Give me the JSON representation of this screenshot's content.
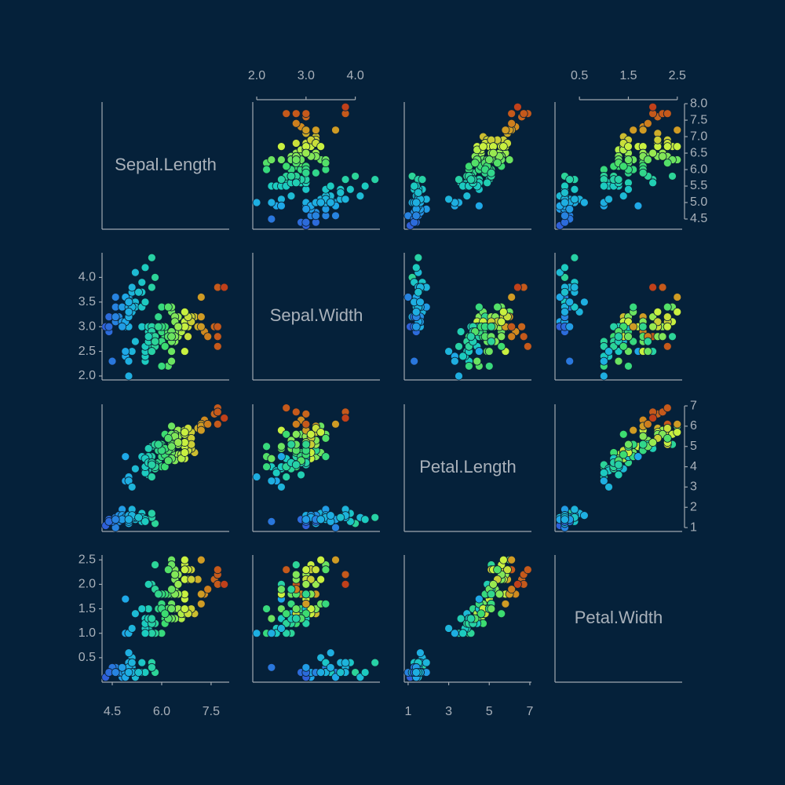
{
  "chart_data": {
    "type": "scatter_matrix",
    "color_by": 0,
    "colormap": [
      "#2f5fd8",
      "#1ea8e8",
      "#1ccbc0",
      "#3cdc70",
      "#c8f040",
      "#d08a1e",
      "#c0401a"
    ],
    "variables": [
      {
        "name": "Sepal.Length",
        "lim": [
          4.19,
          8.05
        ],
        "xticks": [
          4.5,
          {
            "value": 6,
            "label": "6.0"
          },
          7.5
        ],
        "yticks": [
          4.5,
          {
            "value": 5,
            "label": "5.0"
          },
          5.5,
          {
            "value": 6,
            "label": "6.0"
          },
          6.5,
          {
            "value": 7,
            "label": "7.0"
          },
          7.5,
          {
            "value": 8,
            "label": "8.0"
          }
        ],
        "values": [
          5.1,
          4.9,
          4.7,
          4.6,
          5.0,
          5.4,
          4.6,
          5.0,
          4.4,
          4.9,
          5.4,
          4.8,
          4.8,
          4.3,
          5.8,
          5.7,
          5.4,
          5.1,
          5.7,
          5.1,
          5.4,
          5.1,
          4.6,
          5.1,
          4.8,
          5.0,
          5.0,
          5.2,
          5.2,
          4.7,
          4.8,
          5.4,
          5.2,
          5.5,
          4.9,
          5.0,
          5.5,
          4.9,
          4.4,
          5.1,
          5.0,
          4.5,
          4.4,
          5.0,
          5.1,
          4.8,
          5.1,
          4.6,
          5.3,
          5.0,
          7.0,
          6.4,
          6.9,
          5.5,
          6.5,
          5.7,
          6.3,
          4.9,
          6.6,
          5.2,
          5.0,
          5.9,
          6.0,
          6.1,
          5.6,
          6.7,
          5.6,
          5.8,
          6.2,
          5.6,
          5.9,
          6.1,
          6.3,
          6.1,
          6.4,
          6.6,
          6.8,
          6.7,
          6.0,
          5.7,
          5.5,
          5.5,
          5.8,
          6.0,
          5.4,
          6.0,
          6.7,
          6.3,
          5.6,
          5.5,
          5.5,
          6.1,
          5.8,
          5.0,
          5.6,
          5.7,
          5.7,
          6.2,
          5.1,
          5.7,
          6.3,
          5.8,
          7.1,
          6.3,
          6.5,
          7.6,
          4.9,
          7.3,
          6.7,
          7.2,
          6.5,
          6.4,
          6.8,
          5.7,
          5.8,
          6.4,
          6.5,
          7.7,
          7.7,
          6.0,
          6.9,
          5.6,
          7.7,
          6.3,
          6.7,
          7.2,
          6.2,
          6.1,
          6.4,
          7.2,
          7.4,
          7.9,
          6.4,
          6.3,
          6.1,
          7.7,
          6.3,
          6.4,
          6.0,
          6.9,
          6.7,
          6.9,
          5.8,
          6.8,
          6.7,
          6.7,
          6.3,
          6.5,
          6.2,
          5.9
        ]
      },
      {
        "name": "Sepal.Width",
        "lim": [
          1.92,
          4.5
        ],
        "xticks": [
          {
            "value": 2,
            "label": "2.0"
          },
          {
            "value": 3,
            "label": "3.0"
          },
          {
            "value": 4,
            "label": "4.0"
          }
        ],
        "yticks": [
          {
            "value": 2,
            "label": "2.0"
          },
          2.5,
          {
            "value": 3,
            "label": "3.0"
          },
          3.5,
          {
            "value": 4,
            "label": "4.0"
          }
        ],
        "values": [
          3.5,
          3.0,
          3.2,
          3.1,
          3.6,
          3.9,
          3.4,
          3.4,
          2.9,
          3.1,
          3.7,
          3.4,
          3.0,
          3.0,
          4.0,
          4.4,
          3.9,
          3.5,
          3.8,
          3.8,
          3.4,
          3.7,
          3.6,
          3.3,
          3.4,
          3.0,
          3.4,
          3.5,
          3.4,
          3.2,
          3.1,
          3.4,
          4.1,
          4.2,
          3.1,
          3.2,
          3.5,
          3.6,
          3.0,
          3.4,
          3.5,
          2.3,
          3.2,
          3.5,
          3.8,
          3.0,
          3.8,
          3.2,
          3.7,
          3.3,
          3.2,
          3.2,
          3.1,
          2.3,
          2.8,
          2.8,
          3.3,
          2.4,
          2.9,
          2.7,
          2.0,
          3.0,
          2.2,
          2.9,
          2.9,
          3.1,
          3.0,
          2.7,
          2.2,
          2.5,
          3.2,
          2.8,
          2.5,
          2.8,
          2.9,
          3.0,
          2.8,
          3.0,
          2.9,
          2.6,
          2.4,
          2.4,
          2.7,
          2.7,
          3.0,
          3.4,
          3.1,
          2.3,
          3.0,
          2.5,
          2.6,
          3.0,
          2.6,
          2.3,
          2.7,
          3.0,
          2.9,
          2.9,
          2.5,
          2.8,
          3.3,
          2.7,
          3.0,
          2.9,
          3.0,
          3.0,
          2.5,
          2.9,
          2.5,
          3.6,
          3.2,
          2.7,
          3.0,
          2.5,
          2.8,
          3.2,
          3.0,
          3.8,
          2.6,
          2.2,
          3.2,
          2.8,
          2.8,
          2.7,
          3.3,
          3.2,
          2.8,
          3.0,
          2.8,
          3.0,
          2.8,
          3.8,
          2.8,
          2.8,
          2.6,
          3.0,
          3.4,
          3.1,
          3.0,
          3.1,
          3.1,
          3.1,
          2.7,
          3.2,
          3.3,
          3.0,
          2.5,
          3.0,
          3.4,
          3.0
        ]
      },
      {
        "name": "Petal.Length",
        "lim": [
          0.81,
          7.08
        ],
        "xticks": [
          1,
          3,
          5,
          7
        ],
        "yticks": [
          1,
          2,
          3,
          4,
          5,
          6,
          7
        ],
        "values": [
          1.4,
          1.4,
          1.3,
          1.5,
          1.4,
          1.7,
          1.4,
          1.5,
          1.4,
          1.5,
          1.5,
          1.6,
          1.4,
          1.1,
          1.2,
          1.5,
          1.3,
          1.4,
          1.7,
          1.5,
          1.7,
          1.5,
          1.0,
          1.7,
          1.9,
          1.6,
          1.6,
          1.5,
          1.4,
          1.6,
          1.6,
          1.5,
          1.5,
          1.4,
          1.5,
          1.2,
          1.3,
          1.4,
          1.3,
          1.5,
          1.3,
          1.3,
          1.3,
          1.6,
          1.9,
          1.4,
          1.6,
          1.4,
          1.5,
          1.4,
          4.7,
          4.5,
          4.9,
          4.0,
          4.6,
          4.5,
          4.7,
          3.3,
          4.6,
          3.9,
          3.5,
          4.2,
          4.0,
          4.7,
          3.6,
          4.4,
          4.5,
          4.1,
          4.5,
          3.9,
          4.8,
          4.0,
          4.9,
          4.7,
          4.3,
          4.4,
          4.8,
          5.0,
          4.5,
          3.5,
          3.8,
          3.7,
          3.9,
          5.1,
          4.5,
          4.5,
          4.7,
          4.4,
          4.1,
          4.0,
          4.4,
          4.6,
          4.0,
          3.3,
          4.2,
          4.2,
          4.2,
          4.3,
          3.0,
          4.1,
          6.0,
          5.1,
          5.9,
          5.6,
          5.8,
          6.6,
          4.5,
          6.3,
          5.8,
          6.1,
          5.1,
          5.3,
          5.5,
          5.0,
          5.1,
          5.3,
          5.5,
          6.7,
          6.9,
          5.0,
          5.7,
          4.9,
          6.7,
          4.9,
          5.7,
          6.0,
          4.8,
          4.9,
          5.6,
          5.8,
          6.1,
          6.4,
          5.6,
          5.1,
          5.6,
          6.1,
          5.6,
          5.5,
          4.8,
          5.4,
          5.6,
          5.1,
          5.1,
          5.9,
          5.7,
          5.2,
          5.0,
          5.2,
          5.4,
          5.1
        ]
      },
      {
        "name": "Petal.Width",
        "lim": [
          0.0,
          2.6
        ],
        "xticks": [
          0.5,
          1.5,
          2.5
        ],
        "yticks": [
          0.5,
          {
            "value": 1,
            "label": "1.0"
          },
          1.5,
          {
            "value": 2,
            "label": "2.0"
          },
          2.5
        ],
        "values": [
          0.2,
          0.2,
          0.2,
          0.2,
          0.2,
          0.4,
          0.3,
          0.2,
          0.2,
          0.1,
          0.2,
          0.2,
          0.1,
          0.1,
          0.2,
          0.4,
          0.4,
          0.3,
          0.3,
          0.3,
          0.2,
          0.4,
          0.2,
          0.5,
          0.2,
          0.2,
          0.4,
          0.2,
          0.2,
          0.2,
          0.2,
          0.4,
          0.1,
          0.2,
          0.2,
          0.2,
          0.2,
          0.1,
          0.2,
          0.2,
          0.3,
          0.3,
          0.2,
          0.6,
          0.4,
          0.3,
          0.2,
          0.2,
          0.2,
          0.2,
          1.4,
          1.5,
          1.5,
          1.3,
          1.5,
          1.3,
          1.6,
          1.0,
          1.3,
          1.4,
          1.0,
          1.5,
          1.0,
          1.4,
          1.3,
          1.4,
          1.5,
          1.0,
          1.5,
          1.1,
          1.8,
          1.3,
          1.5,
          1.2,
          1.3,
          1.4,
          1.4,
          1.7,
          1.5,
          1.0,
          1.1,
          1.0,
          1.2,
          1.6,
          1.5,
          1.6,
          1.5,
          1.3,
          1.3,
          1.3,
          1.2,
          1.4,
          1.2,
          1.0,
          1.3,
          1.2,
          1.3,
          1.3,
          1.1,
          1.3,
          2.5,
          1.9,
          2.1,
          1.8,
          2.2,
          2.1,
          1.7,
          1.8,
          1.8,
          2.5,
          2.0,
          1.9,
          2.1,
          2.0,
          2.4,
          2.3,
          1.8,
          2.2,
          2.3,
          1.5,
          2.3,
          2.0,
          2.0,
          1.8,
          2.1,
          1.8,
          1.8,
          1.8,
          2.1,
          1.6,
          1.9,
          2.0,
          2.2,
          1.5,
          1.4,
          2.3,
          2.4,
          1.8,
          1.8,
          2.1,
          2.4,
          2.3,
          1.9,
          2.3,
          2.5,
          2.3,
          1.9,
          2.0,
          2.3,
          1.8
        ]
      }
    ]
  }
}
